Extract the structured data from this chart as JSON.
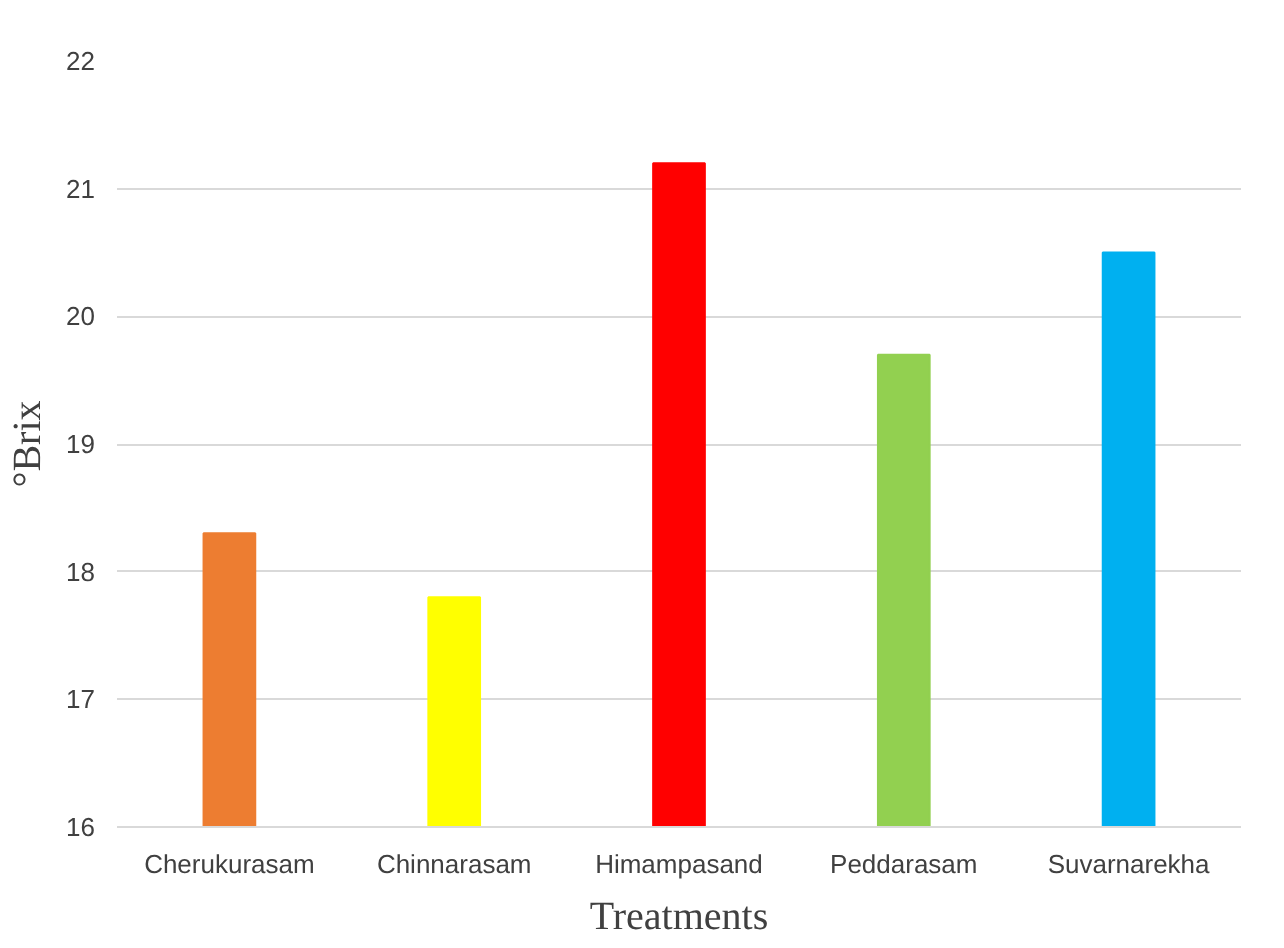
{
  "chart_data": {
    "type": "bar",
    "xlabel": "Treatments",
    "ylabel": "°Brix",
    "categories": [
      "Cherukurasam",
      "Chinnarasam",
      "Himampasand",
      "Peddarasam",
      "Suvarnarekha"
    ],
    "values": [
      18.3,
      17.8,
      21.2,
      19.7,
      20.5
    ],
    "colors": [
      "#ed7d31",
      "#ffff00",
      "#ff0000",
      "#92d050",
      "#00b0f0"
    ],
    "ylim": [
      16,
      22
    ],
    "yticks": [
      16,
      17,
      18,
      19,
      20,
      21,
      22
    ],
    "grid": "y"
  }
}
